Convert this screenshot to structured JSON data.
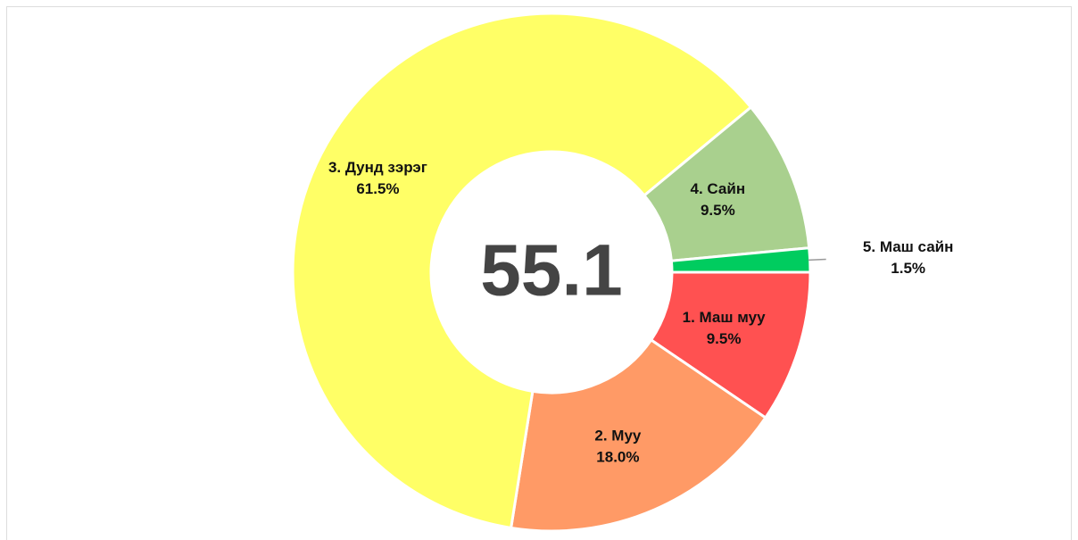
{
  "chart_data": {
    "type": "donut",
    "center_value": 55.1,
    "categories": [
      "1. Маш муу",
      "2. Муу",
      "3. Дунд зэрэг",
      "4. Сайн",
      "5. Маш сайн"
    ],
    "values": [
      9.5,
      18.0,
      61.5,
      9.5,
      1.5
    ],
    "value_labels": [
      "9.5%",
      "18.0%",
      "61.5%",
      "9.5%",
      "1.5%"
    ],
    "colors": [
      "#ff5151",
      "#ff9a66",
      "#ffff66",
      "#a9d08e",
      "#00cc5f"
    ]
  }
}
